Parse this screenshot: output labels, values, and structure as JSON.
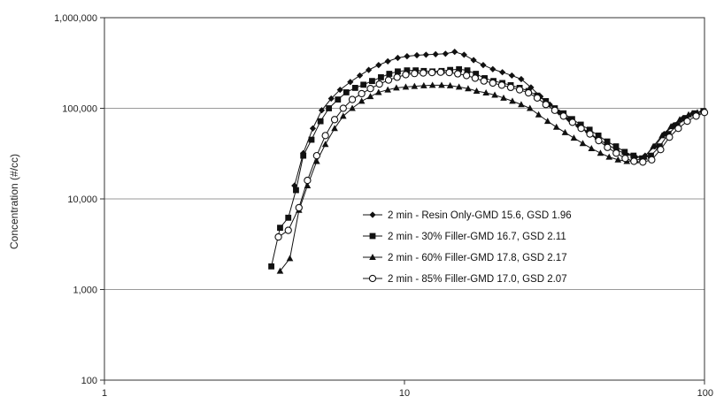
{
  "chart_data": {
    "type": "line",
    "title": "",
    "xlabel": "",
    "ylabel": "Concentration (#/cc)",
    "x_scale": "log",
    "y_scale": "log",
    "xlim": [
      1,
      100
    ],
    "ylim": [
      100,
      1000000
    ],
    "x_ticks": [
      1,
      10,
      100
    ],
    "x_tick_labels": [
      "1",
      "10",
      "100"
    ],
    "y_ticks": [
      100,
      1000,
      10000,
      100000,
      1000000
    ],
    "y_tick_labels": [
      "100",
      "1,000",
      "10,000",
      "100,000",
      "1,000,000"
    ],
    "grid": "horizontal",
    "legend_position": "center-right",
    "series": [
      {
        "name": "2 min - Resin Only-GMD 15.6, GSD 1.96",
        "marker": "diamond",
        "color": "#111111",
        "x": [
          4.3,
          4.6,
          4.95,
          5.3,
          5.7,
          6.1,
          6.6,
          7.1,
          7.6,
          8.2,
          8.8,
          9.5,
          10.2,
          11.0,
          11.8,
          12.7,
          13.7,
          14.7,
          15.8,
          17.0,
          18.3,
          19.7,
          21.2,
          22.8,
          24.5,
          26.4,
          28.4,
          30.5,
          32.8,
          35.3,
          38.0,
          40.9,
          44.0,
          47.3,
          50.9,
          54.8,
          58.9,
          63.4,
          68.2,
          73.4,
          78.9,
          84.9,
          91.4,
          98.3
        ],
        "y": [
          14000,
          32000,
          60000,
          95000,
          128000,
          160000,
          195000,
          230000,
          265000,
          300000,
          330000,
          360000,
          375000,
          385000,
          390000,
          395000,
          400000,
          420000,
          390000,
          340000,
          300000,
          270000,
          250000,
          230000,
          210000,
          170000,
          135000,
          110000,
          90000,
          76000,
          64000,
          55000,
          46000,
          40000,
          35000,
          31000,
          29000,
          30000,
          38000,
          52000,
          65000,
          78000,
          88000,
          92000
        ]
      },
      {
        "name": "2 min - 30% Filler-GMD 16.7, GSD 2.11",
        "marker": "square",
        "color": "#111111",
        "x": [
          3.6,
          3.85,
          4.1,
          4.35,
          4.6,
          4.9,
          5.25,
          5.6,
          6.0,
          6.4,
          6.85,
          7.3,
          7.8,
          8.35,
          8.9,
          9.5,
          10.2,
          10.9,
          11.6,
          12.4,
          13.3,
          14.2,
          15.2,
          16.2,
          17.3,
          18.5,
          19.8,
          21.2,
          22.6,
          24.2,
          25.9,
          27.7,
          29.6,
          31.7,
          33.9,
          36.2,
          38.7,
          41.4,
          44.3,
          47.4,
          50.7,
          54.2,
          58.0,
          62.0,
          66.3,
          70.9,
          75.8,
          81.1,
          86.7,
          92.7,
          99.2
        ],
        "y": [
          1800,
          4800,
          6200,
          12500,
          30000,
          45000,
          72000,
          100000,
          125000,
          150000,
          168000,
          182000,
          200000,
          220000,
          240000,
          255000,
          262000,
          262000,
          258000,
          255000,
          258000,
          265000,
          270000,
          262000,
          240000,
          215000,
          200000,
          190000,
          180000,
          168000,
          155000,
          138000,
          120000,
          100000,
          88000,
          76000,
          66000,
          58000,
          50000,
          43000,
          38000,
          33000,
          30000,
          28000,
          30000,
          38000,
          52000,
          65000,
          78000,
          88000,
          93000
        ]
      },
      {
        "name": "2 min - 60% Filler-GMD 17.8, GSD 2.17",
        "marker": "triangle",
        "color": "#111111",
        "x": [
          3.85,
          4.15,
          4.45,
          4.75,
          5.1,
          5.45,
          5.85,
          6.25,
          6.7,
          7.2,
          7.7,
          8.2,
          8.8,
          9.4,
          10.1,
          10.8,
          11.6,
          12.4,
          13.3,
          14.2,
          15.2,
          16.3,
          17.4,
          18.7,
          20.0,
          21.4,
          22.9,
          24.5,
          26.2,
          28.0,
          30.0,
          32.1,
          34.3,
          36.7,
          39.3,
          42.0,
          45.0,
          48.1,
          51.5,
          55.1,
          59.0,
          63.1,
          67.5,
          72.2,
          77.3,
          82.7,
          88.5,
          94.7
        ],
        "y": [
          1600,
          2200,
          7500,
          14000,
          26000,
          40000,
          60000,
          82000,
          100000,
          120000,
          135000,
          150000,
          160000,
          168000,
          172000,
          175000,
          178000,
          180000,
          180000,
          178000,
          172000,
          165000,
          155000,
          148000,
          140000,
          130000,
          120000,
          110000,
          100000,
          85000,
          72000,
          62000,
          54000,
          47000,
          41000,
          36000,
          32000,
          29000,
          27000,
          26000,
          26500,
          29000,
          38000,
          50000,
          63000,
          75000,
          85000,
          90000
        ]
      },
      {
        "name": "2 min - 85% Filler-GMD 17.0, GSD 2.07",
        "marker": "circle-open",
        "color": "#111111",
        "x": [
          3.8,
          4.1,
          4.45,
          4.75,
          5.1,
          5.45,
          5.85,
          6.25,
          6.7,
          7.2,
          7.7,
          8.25,
          8.85,
          9.45,
          10.1,
          10.8,
          11.55,
          12.35,
          13.2,
          14.1,
          15.05,
          16.1,
          17.2,
          18.4,
          19.7,
          21.1,
          22.6,
          24.2,
          25.9,
          27.7,
          29.6,
          31.7,
          33.9,
          36.3,
          38.8,
          41.5,
          44.4,
          47.5,
          50.8,
          54.4,
          58.2,
          62.3,
          66.7,
          71.4,
          76.4,
          81.8,
          87.6,
          93.8,
          100.0
        ],
        "y": [
          3800,
          4500,
          8000,
          16000,
          30000,
          50000,
          75000,
          100000,
          125000,
          145000,
          165000,
          185000,
          205000,
          220000,
          235000,
          242000,
          245000,
          248000,
          250000,
          248000,
          240000,
          230000,
          215000,
          200000,
          190000,
          180000,
          170000,
          160000,
          148000,
          130000,
          110000,
          95000,
          82000,
          70000,
          60000,
          52000,
          44000,
          37000,
          32000,
          28000,
          26000,
          25500,
          27000,
          35000,
          48000,
          60000,
          72000,
          82000,
          90000
        ]
      }
    ]
  }
}
